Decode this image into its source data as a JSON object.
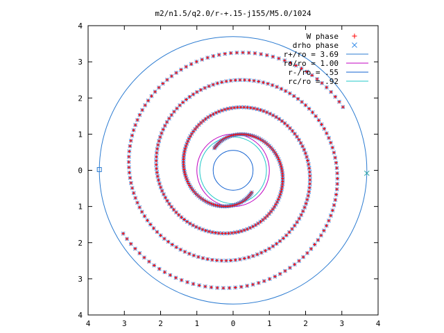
{
  "chart_data": {
    "type": "scatter",
    "title": "m2/n1.5/q2.0/r-+.15-j155/M5.0/1024",
    "xlim": [
      -4,
      4
    ],
    "ylim": [
      -4,
      4
    ],
    "x_tick_labels": [
      "4",
      "3",
      "2",
      "1",
      "0",
      "1",
      "2",
      "3",
      "4"
    ],
    "y_tick_labels": [
      "4",
      "3",
      "2",
      "1",
      "0",
      "1",
      "2",
      "3",
      "4"
    ],
    "grid": false,
    "legend_position": "top-right",
    "legend": [
      {
        "label": "W phase",
        "kind": "points",
        "symbol": "+",
        "color": "#ff0000"
      },
      {
        "label": "drho phase",
        "kind": "points",
        "symbol": "x",
        "color": "#3a8fe8"
      },
      {
        "label": "r+/ro = 3.69",
        "kind": "line",
        "color": "#2b7bd1"
      },
      {
        "label": "ro/ro = 1.00",
        "kind": "line",
        "color": "#c000c0"
      },
      {
        "label": "r-/ro = .55",
        "kind": "line",
        "color": "#1060d0"
      },
      {
        "label": "rc/ro = .92",
        "kind": "line",
        "color": "#20c8c8"
      }
    ],
    "circles": [
      {
        "name": "r+/ro",
        "radius": 3.69,
        "color": "#2b7bd1"
      },
      {
        "name": "ro/ro",
        "radius": 1.0,
        "color": "#c000c0"
      },
      {
        "name": "r-/ro",
        "radius": 0.55,
        "color": "#1060d0"
      },
      {
        "name": "rc/ro",
        "radius": 0.92,
        "color": "#20c8c8"
      }
    ],
    "spiral_arms": [
      {
        "arm": 1,
        "start_angle_deg": 130,
        "r_min": 0.8,
        "r_max": 3.5,
        "turn_deg": 640
      },
      {
        "arm": 2,
        "start_angle_deg": 310,
        "r_min": 0.8,
        "r_max": 3.5,
        "turn_deg": 640
      }
    ],
    "markers": [
      {
        "symbol": "square",
        "x": -3.69,
        "y": 0.02,
        "color": "#2b7bd1"
      },
      {
        "symbol": "x",
        "x": 3.69,
        "y": -0.08,
        "color": "#20a0a0"
      }
    ]
  }
}
